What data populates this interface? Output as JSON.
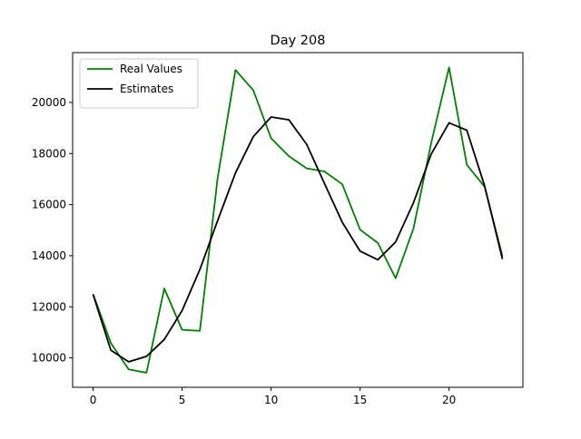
{
  "chart_data": {
    "type": "line",
    "title": "Day 208",
    "xlabel": "",
    "ylabel": "",
    "xlim": [
      -1.15,
      24.15
    ],
    "ylim": [
      8850,
      21950
    ],
    "xticks": [
      0,
      5,
      10,
      15,
      20
    ],
    "yticks": [
      10000,
      12000,
      14000,
      16000,
      18000,
      20000
    ],
    "grid": false,
    "legend_position": "top-left",
    "x": [
      0,
      1,
      2,
      3,
      4,
      5,
      6,
      7,
      8,
      9,
      10,
      11,
      12,
      13,
      14,
      15,
      16,
      17,
      18,
      19,
      20,
      21,
      22,
      23
    ],
    "series": [
      {
        "name": "Real Values",
        "color": "#008000",
        "values": [
          12500,
          10580,
          9550,
          9420,
          12720,
          11100,
          11060,
          17050,
          21270,
          20480,
          18600,
          17900,
          17420,
          17300,
          16800,
          15020,
          14500,
          13120,
          15060,
          18420,
          21370,
          17560,
          16700,
          13980
        ]
      },
      {
        "name": "Estimates",
        "color": "#000000",
        "values": [
          12480,
          10300,
          9850,
          10060,
          10720,
          11850,
          13460,
          15380,
          17240,
          18660,
          19430,
          19320,
          18360,
          16830,
          15310,
          14180,
          13840,
          14540,
          16070,
          17980,
          19200,
          18910,
          16730,
          13870
        ]
      }
    ]
  }
}
